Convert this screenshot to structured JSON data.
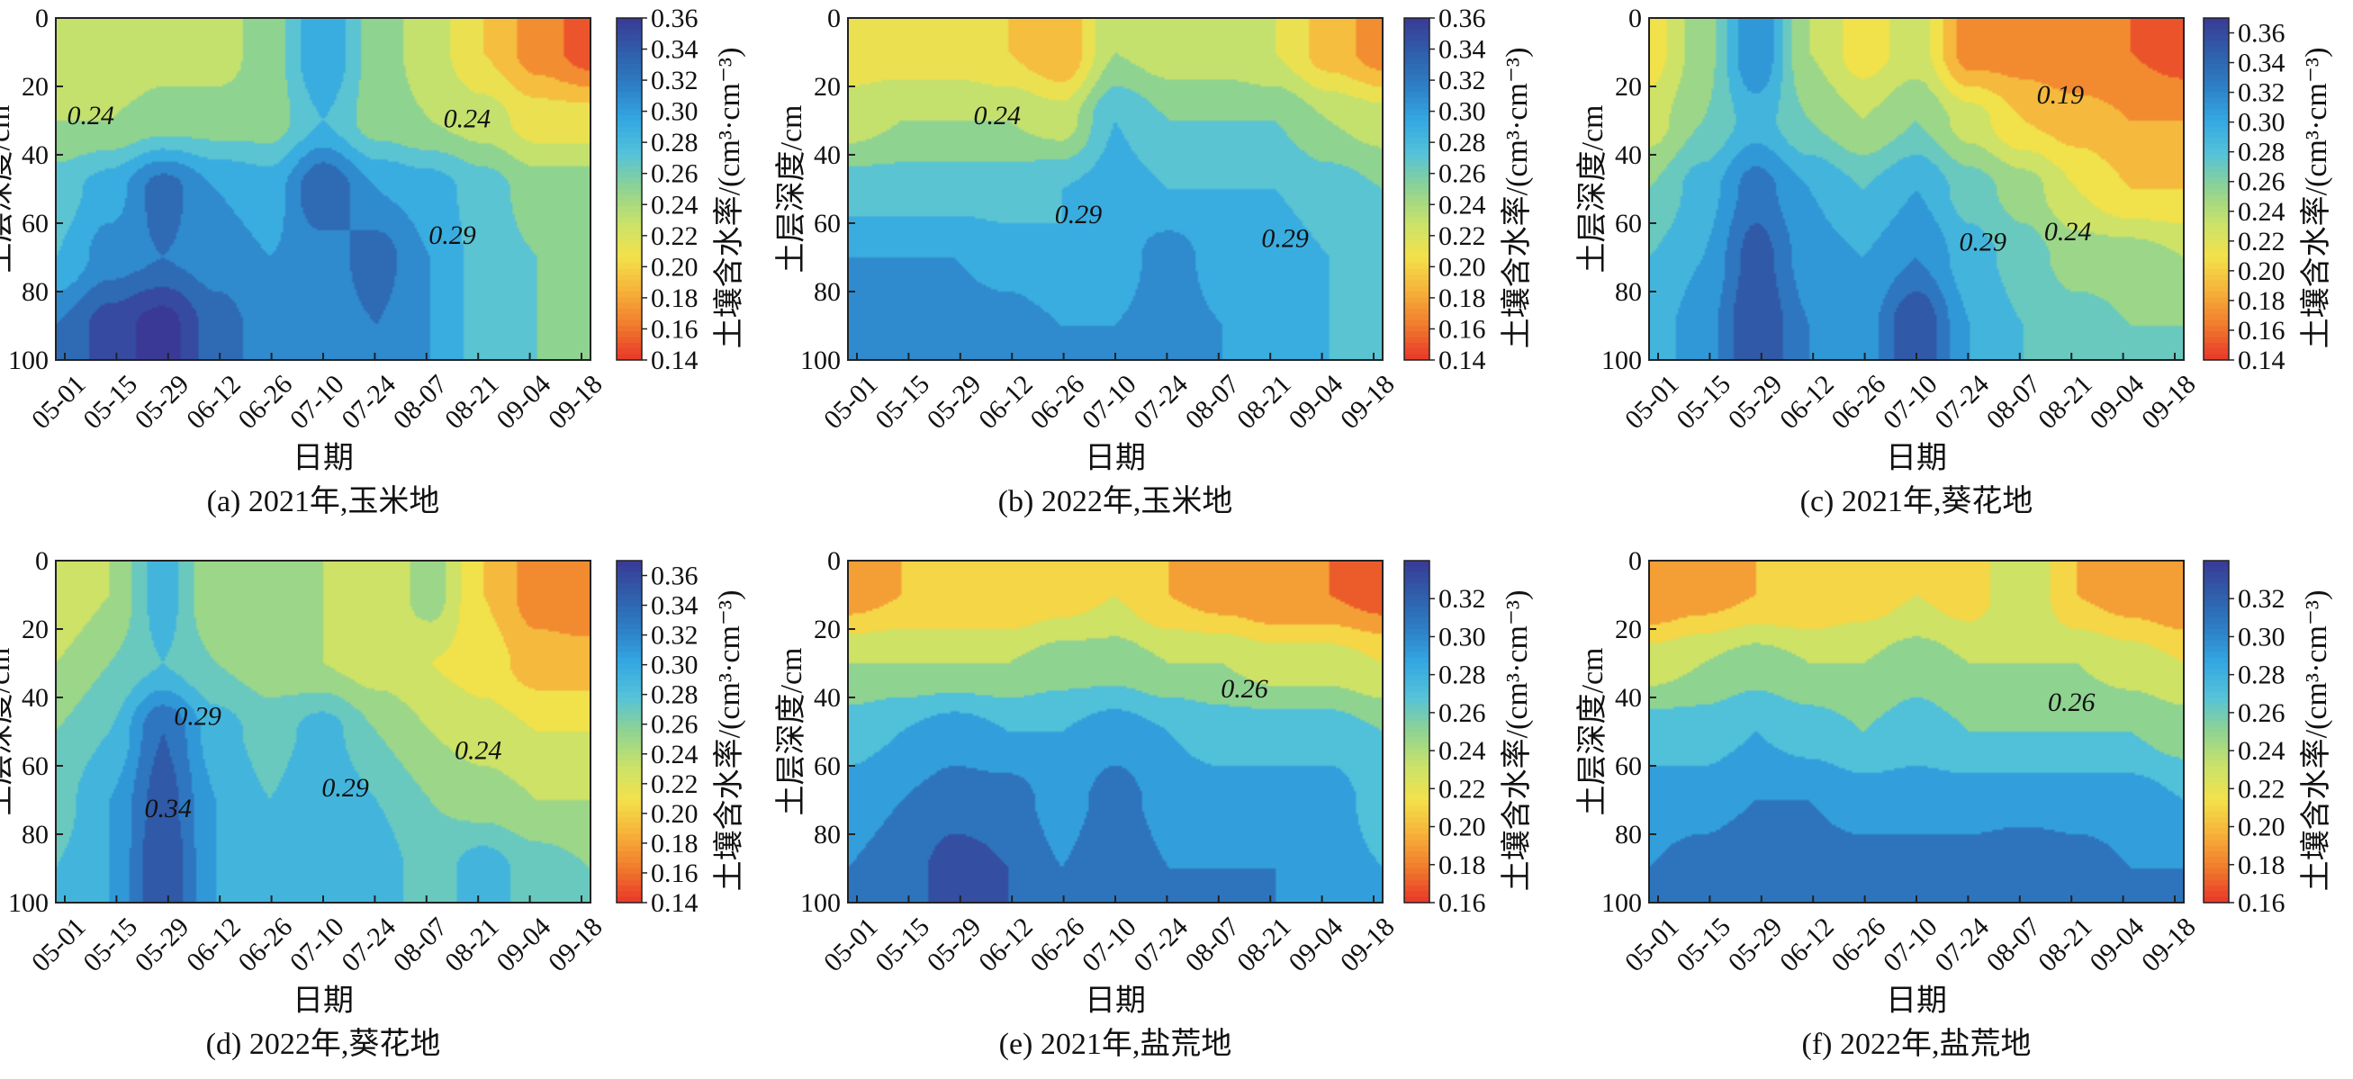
{
  "colors": {
    "colormap": [
      "#e8362a",
      "#f07a2c",
      "#f6b13a",
      "#f3e14a",
      "#c9e26a",
      "#8fd391",
      "#55c3d8",
      "#33a8e2",
      "#2e7fc6",
      "#2f5eab",
      "#3a3a96"
    ],
    "frame": "#222222",
    "contour_line": "#333333"
  },
  "chart_data": [
    {
      "type": "heatmap",
      "id": "a",
      "caption": "(a) 2021年,玉米地",
      "xlabel": "日期",
      "ylabel": "土层深度/cm",
      "colorbar_label": "土壤含水率/(cm³·cm⁻³)",
      "x_ticks": [
        "05-01",
        "05-15",
        "05-29",
        "06-12",
        "06-26",
        "07-10",
        "07-24",
        "08-07",
        "08-21",
        "09-04",
        "09-18"
      ],
      "y_ticks": [
        "0",
        "20",
        "40",
        "60",
        "80",
        "100"
      ],
      "ylim": [
        0,
        100
      ],
      "colorbar_range": [
        0.14,
        0.36
      ],
      "colorbar_ticks": [
        "0.36",
        "0.34",
        "0.32",
        "0.30",
        "0.28",
        "0.26",
        "0.24",
        "0.22",
        "0.20",
        "0.18",
        "0.16",
        "0.14"
      ],
      "depths": [
        10,
        30,
        50,
        70,
        90
      ],
      "values": [
        [
          0.22,
          0.22,
          0.23,
          0.23,
          0.25,
          0.3,
          0.25,
          0.23,
          0.2,
          0.17,
          0.15
        ],
        [
          0.24,
          0.24,
          0.25,
          0.25,
          0.25,
          0.28,
          0.25,
          0.24,
          0.23,
          0.21,
          0.21
        ],
        [
          0.27,
          0.29,
          0.33,
          0.3,
          0.29,
          0.34,
          0.3,
          0.29,
          0.27,
          0.25,
          0.25
        ],
        [
          0.28,
          0.31,
          0.32,
          0.31,
          0.3,
          0.31,
          0.33,
          0.3,
          0.27,
          0.26,
          0.25
        ],
        [
          0.32,
          0.35,
          0.37,
          0.33,
          0.31,
          0.31,
          0.32,
          0.3,
          0.27,
          0.26,
          0.25
        ]
      ],
      "contour_labels": [
        {
          "text": "0.24",
          "date": "05-08",
          "depth": 31
        },
        {
          "text": "0.24",
          "date": "08-18",
          "depth": 32
        },
        {
          "text": "0.29",
          "date": "08-14",
          "depth": 66
        }
      ]
    },
    {
      "type": "heatmap",
      "id": "b",
      "caption": "(b) 2022年,玉米地",
      "xlabel": "日期",
      "ylabel": "土层深度/cm",
      "colorbar_label": "土壤含水率/(cm³·cm⁻³)",
      "x_ticks": [
        "05-01",
        "05-15",
        "05-29",
        "06-12",
        "06-26",
        "07-10",
        "07-24",
        "08-07",
        "08-21",
        "09-04",
        "09-18"
      ],
      "y_ticks": [
        "0",
        "20",
        "40",
        "60",
        "80",
        "100"
      ],
      "ylim": [
        0,
        100
      ],
      "colorbar_range": [
        0.14,
        0.36
      ],
      "colorbar_ticks": [
        "0.36",
        "0.34",
        "0.32",
        "0.30",
        "0.28",
        "0.26",
        "0.24",
        "0.22",
        "0.20",
        "0.18",
        "0.16",
        "0.14"
      ],
      "depths": [
        10,
        30,
        50,
        70,
        90
      ],
      "values": [
        [
          0.21,
          0.21,
          0.21,
          0.2,
          0.18,
          0.24,
          0.23,
          0.23,
          0.22,
          0.19,
          0.17
        ],
        [
          0.23,
          0.24,
          0.24,
          0.24,
          0.23,
          0.28,
          0.26,
          0.26,
          0.26,
          0.24,
          0.23
        ],
        [
          0.27,
          0.27,
          0.27,
          0.27,
          0.28,
          0.29,
          0.28,
          0.28,
          0.28,
          0.27,
          0.26
        ],
        [
          0.3,
          0.3,
          0.3,
          0.29,
          0.28,
          0.29,
          0.31,
          0.29,
          0.29,
          0.28,
          0.27
        ],
        [
          0.3,
          0.31,
          0.31,
          0.31,
          0.3,
          0.3,
          0.31,
          0.3,
          0.28,
          0.28,
          0.27
        ]
      ],
      "contour_labels": [
        {
          "text": "0.24",
          "date": "06-08",
          "depth": 31
        },
        {
          "text": "0.29",
          "date": "06-30",
          "depth": 60
        },
        {
          "text": "0.29",
          "date": "08-25",
          "depth": 67
        }
      ]
    },
    {
      "type": "heatmap",
      "id": "c",
      "caption": "(c) 2021年,葵花地",
      "xlabel": "日期",
      "ylabel": "土层深度/cm",
      "colorbar_label": "土壤含水率/(cm³·cm⁻³)",
      "x_ticks": [
        "05-01",
        "05-15",
        "05-29",
        "06-12",
        "06-26",
        "07-10",
        "07-24",
        "08-07",
        "08-21",
        "09-04",
        "09-18"
      ],
      "y_ticks": [
        "0",
        "20",
        "40",
        "60",
        "80",
        "100"
      ],
      "ylim": [
        0,
        100
      ],
      "colorbar_range": [
        0.14,
        0.37
      ],
      "colorbar_ticks": [
        "0.36",
        "0.34",
        "0.32",
        "0.30",
        "0.28",
        "0.26",
        "0.24",
        "0.22",
        "0.20",
        "0.18",
        "0.16",
        "0.14"
      ],
      "depths": [
        10,
        30,
        50,
        70,
        90
      ],
      "values": [
        [
          0.21,
          0.25,
          0.32,
          0.24,
          0.21,
          0.23,
          0.17,
          0.17,
          0.16,
          0.16,
          0.15
        ],
        [
          0.23,
          0.26,
          0.29,
          0.26,
          0.24,
          0.26,
          0.23,
          0.2,
          0.19,
          0.18,
          0.18
        ],
        [
          0.26,
          0.29,
          0.33,
          0.3,
          0.28,
          0.3,
          0.27,
          0.25,
          0.22,
          0.2,
          0.2
        ],
        [
          0.28,
          0.3,
          0.35,
          0.31,
          0.3,
          0.32,
          0.29,
          0.27,
          0.25,
          0.25,
          0.24
        ],
        [
          0.29,
          0.31,
          0.36,
          0.32,
          0.31,
          0.36,
          0.3,
          0.28,
          0.27,
          0.26,
          0.26
        ]
      ],
      "contour_labels": [
        {
          "text": "0.19",
          "date": "08-18",
          "depth": 25
        },
        {
          "text": "0.24",
          "date": "08-20",
          "depth": 65
        },
        {
          "text": "0.29",
          "date": "07-28",
          "depth": 68
        }
      ]
    },
    {
      "type": "heatmap",
      "id": "d",
      "caption": "(d) 2022年,葵花地",
      "xlabel": "日期",
      "ylabel": "土层深度/cm",
      "colorbar_label": "土壤含水率/(cm³·cm⁻³)",
      "x_ticks": [
        "05-01",
        "05-15",
        "05-29",
        "06-12",
        "06-26",
        "07-10",
        "07-24",
        "08-07",
        "08-21",
        "09-04",
        "09-18"
      ],
      "y_ticks": [
        "0",
        "20",
        "40",
        "60",
        "80",
        "100"
      ],
      "ylim": [
        0,
        100
      ],
      "colorbar_range": [
        0.14,
        0.37
      ],
      "colorbar_ticks": [
        "0.36",
        "0.34",
        "0.32",
        "0.30",
        "0.28",
        "0.26",
        "0.24",
        "0.22",
        "0.20",
        "0.18",
        "0.16",
        "0.14"
      ],
      "depths": [
        10,
        30,
        50,
        70,
        90
      ],
      "values": [
        [
          0.22,
          0.24,
          0.29,
          0.24,
          0.26,
          0.24,
          0.22,
          0.25,
          0.2,
          0.17,
          0.16
        ],
        [
          0.24,
          0.26,
          0.28,
          0.26,
          0.25,
          0.24,
          0.23,
          0.22,
          0.21,
          0.19,
          0.19
        ],
        [
          0.26,
          0.28,
          0.34,
          0.29,
          0.27,
          0.29,
          0.26,
          0.24,
          0.23,
          0.22,
          0.22
        ],
        [
          0.27,
          0.3,
          0.35,
          0.3,
          0.28,
          0.3,
          0.28,
          0.26,
          0.25,
          0.24,
          0.24
        ],
        [
          0.28,
          0.3,
          0.36,
          0.3,
          0.28,
          0.3,
          0.29,
          0.27,
          0.29,
          0.27,
          0.26
        ]
      ],
      "contour_labels": [
        {
          "text": "0.29",
          "date": "06-06",
          "depth": 48
        },
        {
          "text": "0.34",
          "date": "05-29",
          "depth": 75
        },
        {
          "text": "0.29",
          "date": "07-16",
          "depth": 69
        },
        {
          "text": "0.24",
          "date": "08-21",
          "depth": 58
        }
      ]
    },
    {
      "type": "heatmap",
      "id": "e",
      "caption": "(e) 2021年,盐荒地",
      "xlabel": "日期",
      "ylabel": "土层深度/cm",
      "colorbar_label": "土壤含水率/(cm³·cm⁻³)",
      "x_ticks": [
        "05-01",
        "05-15",
        "05-29",
        "06-12",
        "06-26",
        "07-10",
        "07-24",
        "08-07",
        "08-21",
        "09-04",
        "09-18"
      ],
      "y_ticks": [
        "0",
        "20",
        "40",
        "60",
        "80",
        "100"
      ],
      "ylim": [
        0,
        100
      ],
      "colorbar_range": [
        0.16,
        0.34
      ],
      "colorbar_ticks": [
        "0.32",
        "0.30",
        "0.28",
        "0.26",
        "0.24",
        "0.22",
        "0.20",
        "0.18",
        "0.16"
      ],
      "depths": [
        10,
        30,
        50,
        70,
        90
      ],
      "values": [
        [
          0.19,
          0.2,
          0.2,
          0.2,
          0.21,
          0.22,
          0.2,
          0.19,
          0.18,
          0.18,
          0.17
        ],
        [
          0.24,
          0.24,
          0.24,
          0.24,
          0.25,
          0.25,
          0.24,
          0.24,
          0.23,
          0.23,
          0.22
        ],
        [
          0.27,
          0.28,
          0.29,
          0.28,
          0.28,
          0.29,
          0.28,
          0.27,
          0.27,
          0.27,
          0.26
        ],
        [
          0.29,
          0.3,
          0.31,
          0.31,
          0.29,
          0.31,
          0.29,
          0.29,
          0.29,
          0.29,
          0.27
        ],
        [
          0.3,
          0.31,
          0.33,
          0.32,
          0.3,
          0.32,
          0.3,
          0.3,
          0.3,
          0.29,
          0.28
        ]
      ],
      "contour_labels": [
        {
          "text": "0.26",
          "date": "08-14",
          "depth": 40
        }
      ]
    },
    {
      "type": "heatmap",
      "id": "f",
      "caption": "(f) 2022年,盐荒地",
      "xlabel": "日期",
      "ylabel": "土层深度/cm",
      "colorbar_label": "土壤含水率/(cm³·cm⁻³)",
      "x_ticks": [
        "05-01",
        "05-15",
        "05-29",
        "06-12",
        "06-26",
        "07-10",
        "07-24",
        "08-07",
        "08-21",
        "09-04",
        "09-18"
      ],
      "y_ticks": [
        "0",
        "20",
        "40",
        "60",
        "80",
        "100"
      ],
      "ylim": [
        0,
        100
      ],
      "colorbar_range": [
        0.16,
        0.34
      ],
      "colorbar_ticks": [
        "0.32",
        "0.30",
        "0.28",
        "0.26",
        "0.24",
        "0.22",
        "0.20",
        "0.18",
        "0.16"
      ],
      "depths": [
        10,
        30,
        50,
        70,
        90
      ],
      "values": [
        [
          0.18,
          0.19,
          0.2,
          0.2,
          0.21,
          0.22,
          0.21,
          0.24,
          0.2,
          0.19,
          0.18
        ],
        [
          0.23,
          0.24,
          0.25,
          0.24,
          0.24,
          0.25,
          0.24,
          0.24,
          0.24,
          0.23,
          0.22
        ],
        [
          0.27,
          0.27,
          0.28,
          0.27,
          0.26,
          0.27,
          0.26,
          0.26,
          0.26,
          0.26,
          0.25
        ],
        [
          0.29,
          0.29,
          0.3,
          0.3,
          0.29,
          0.29,
          0.29,
          0.29,
          0.29,
          0.29,
          0.28
        ],
        [
          0.3,
          0.31,
          0.32,
          0.31,
          0.31,
          0.31,
          0.31,
          0.32,
          0.31,
          0.3,
          0.3
        ]
      ],
      "contour_labels": [
        {
          "text": "0.26",
          "date": "08-21",
          "depth": 44
        }
      ]
    }
  ]
}
